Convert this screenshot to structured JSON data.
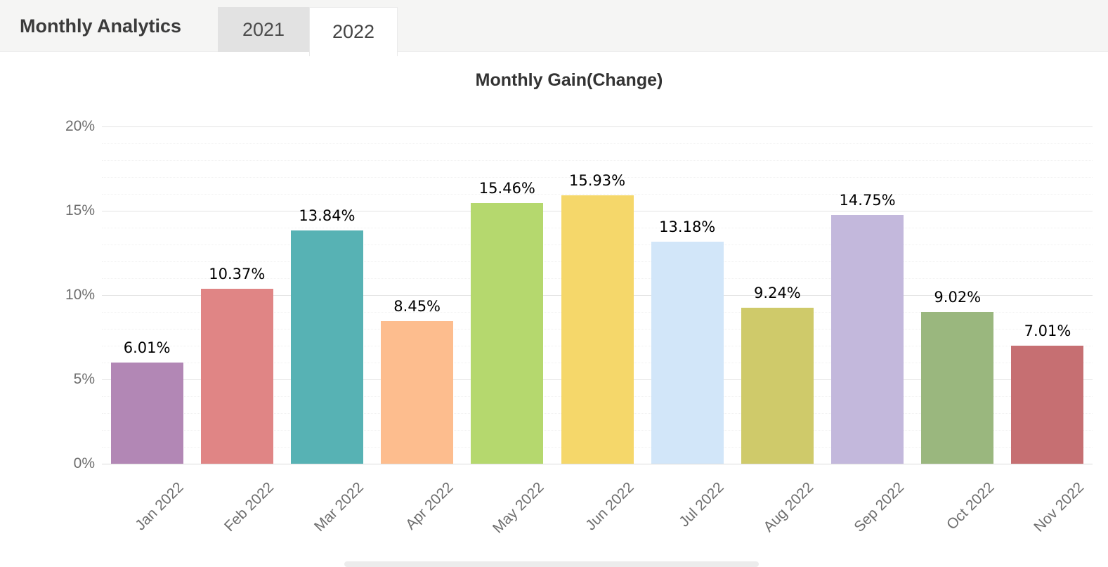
{
  "header": {
    "title": "Monthly Analytics",
    "tabs": [
      {
        "label": "2021",
        "active": false
      },
      {
        "label": "2022",
        "active": true
      }
    ]
  },
  "chart_data": {
    "type": "bar",
    "title": "Monthly Gain(Change)",
    "categories": [
      "Jan 2022",
      "Feb 2022",
      "Mar 2022",
      "Apr 2022",
      "May 2022",
      "Jun 2022",
      "Jul 2022",
      "Aug 2022",
      "Sep 2022",
      "Oct 2022",
      "Nov 2022"
    ],
    "values": [
      6.01,
      10.37,
      13.84,
      8.45,
      15.46,
      15.93,
      13.18,
      9.24,
      14.75,
      9.02,
      7.01
    ],
    "value_labels": [
      "6.01%",
      "10.37%",
      "13.84%",
      "8.45%",
      "15.46%",
      "15.93%",
      "13.18%",
      "9.24%",
      "14.75%",
      "9.02%",
      "7.01%"
    ],
    "bar_colors": [
      "#b287b5",
      "#e08585",
      "#57b2b4",
      "#fdbd8e",
      "#b5d86e",
      "#f5d76a",
      "#d2e6f9",
      "#cfca6a",
      "#c3b8dc",
      "#9ab77e",
      "#c66f72"
    ],
    "xlabel": "",
    "ylabel": "",
    "ylim": [
      0,
      20
    ],
    "y_ticks": [
      {
        "value": 20,
        "label": "20%"
      },
      {
        "value": 15,
        "label": "15%"
      },
      {
        "value": 10,
        "label": "10%"
      },
      {
        "value": 5,
        "label": "5%"
      },
      {
        "value": 0,
        "label": "0%"
      }
    ],
    "minor_grid_step": 1,
    "grid": "horizontal: solid major lines every 5%, faint dotted minor lines every 1%",
    "legend": "none"
  }
}
